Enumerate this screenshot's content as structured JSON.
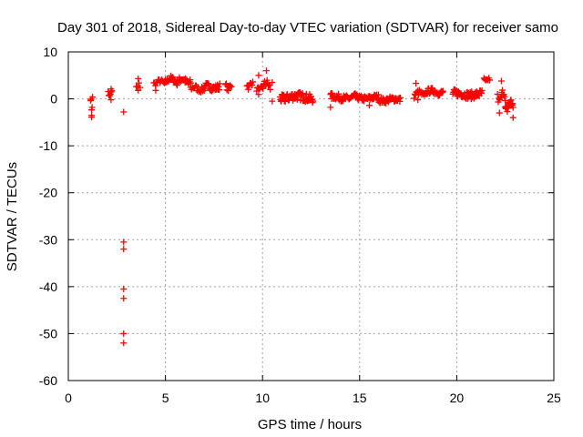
{
  "chart_data": {
    "type": "scatter",
    "title": "Day 301 of 2018, Sidereal Day-to-day VTEC variation (SDTVAR) for receiver samo",
    "xlabel": "GPS time / hours",
    "ylabel": "SDTVAR / TECUs",
    "xlim": [
      0,
      25
    ],
    "ylim": [
      -60,
      10
    ],
    "xticks": [
      "0",
      "5",
      "10",
      "15",
      "20",
      "25"
    ],
    "yticks": [
      "10",
      "0",
      "-10",
      "-20",
      "-30",
      "-40",
      "-50",
      "-60"
    ],
    "grid": true,
    "marker": "plus",
    "color": "#ff0000",
    "clusters": [
      {
        "x0": 1.15,
        "x1": 1.25,
        "y": -1.0,
        "amp": 2.5,
        "n": 5,
        "spread": 0.5
      },
      {
        "x0": 2.05,
        "x1": 2.25,
        "y": 1.0,
        "amp": 1.2,
        "n": 6,
        "spread": 0.5
      },
      {
        "x0": 3.5,
        "x1": 3.7,
        "y": 2.8,
        "amp": 1.6,
        "n": 4,
        "spread": 0.4
      },
      {
        "x0": 4.4,
        "x1": 5.0,
        "y": 3.5,
        "amp": 0.6,
        "n": 14,
        "spread": 0.5
      },
      {
        "x0": 5.0,
        "x1": 5.6,
        "y": 4.0,
        "amp": 0.8,
        "n": 20,
        "spread": 0.6
      },
      {
        "x0": 5.6,
        "x1": 6.3,
        "y": 3.8,
        "amp": 0.9,
        "n": 25,
        "spread": 0.7
      },
      {
        "x0": 6.3,
        "x1": 7.0,
        "y": 2.2,
        "amp": 0.6,
        "n": 18,
        "spread": 0.6
      },
      {
        "x0": 7.0,
        "x1": 7.8,
        "y": 2.5,
        "amp": 0.5,
        "n": 28,
        "spread": 0.7
      },
      {
        "x0": 8.1,
        "x1": 8.4,
        "y": 2.5,
        "amp": 0.8,
        "n": 10,
        "spread": 0.6
      },
      {
        "x0": 9.2,
        "x1": 9.5,
        "y": 3.0,
        "amp": 1.0,
        "n": 10,
        "spread": 0.6
      },
      {
        "x0": 9.7,
        "x1": 10.4,
        "y": 2.5,
        "amp": 1.8,
        "n": 22,
        "spread": 0.8
      },
      {
        "x0": 10.9,
        "x1": 12.6,
        "y": 0.3,
        "amp": 0.6,
        "n": 70,
        "spread": 0.9
      },
      {
        "x0": 13.5,
        "x1": 14.8,
        "y": 0.3,
        "amp": 0.5,
        "n": 45,
        "spread": 0.7
      },
      {
        "x0": 14.8,
        "x1": 16.0,
        "y": 0.2,
        "amp": 0.4,
        "n": 40,
        "spread": 0.6
      },
      {
        "x0": 16.0,
        "x1": 17.1,
        "y": -0.2,
        "amp": 0.4,
        "n": 38,
        "spread": 0.6
      },
      {
        "x0": 17.8,
        "x1": 18.4,
        "y": 1.0,
        "amp": 0.8,
        "n": 16,
        "spread": 0.6
      },
      {
        "x0": 18.4,
        "x1": 19.3,
        "y": 1.5,
        "amp": 0.5,
        "n": 30,
        "spread": 0.6
      },
      {
        "x0": 19.8,
        "x1": 21.3,
        "y": 1.0,
        "amp": 0.5,
        "n": 55,
        "spread": 0.8
      },
      {
        "x0": 21.4,
        "x1": 21.7,
        "y": 4.0,
        "amp": 0.5,
        "n": 8,
        "spread": 0.4
      },
      {
        "x0": 22.1,
        "x1": 22.5,
        "y": 0.5,
        "amp": 2.0,
        "n": 12,
        "spread": 0.8
      },
      {
        "x0": 22.5,
        "x1": 22.9,
        "y": -1.5,
        "amp": 1.8,
        "n": 24,
        "spread": 0.8
      }
    ],
    "extra_points": [
      {
        "x": 1.2,
        "y": -3.5
      },
      {
        "x": 1.2,
        "y": -3.9
      },
      {
        "x": 2.2,
        "y": -0.2
      },
      {
        "x": 2.2,
        "y": 2.1
      },
      {
        "x": 2.85,
        "y": -2.8
      },
      {
        "x": 2.85,
        "y": -30.5
      },
      {
        "x": 2.85,
        "y": -32.0
      },
      {
        "x": 2.85,
        "y": -40.5
      },
      {
        "x": 2.85,
        "y": -42.5
      },
      {
        "x": 2.85,
        "y": -50.0
      },
      {
        "x": 2.85,
        "y": -52.0
      },
      {
        "x": 3.6,
        "y": 4.3
      },
      {
        "x": 3.6,
        "y": 1.8
      },
      {
        "x": 4.5,
        "y": 1.8
      },
      {
        "x": 9.8,
        "y": 5.0
      },
      {
        "x": 10.2,
        "y": 6.0
      },
      {
        "x": 10.5,
        "y": 3.5
      },
      {
        "x": 10.5,
        "y": -0.5
      },
      {
        "x": 13.5,
        "y": -1.8
      },
      {
        "x": 15.5,
        "y": -1.4
      },
      {
        "x": 17.9,
        "y": 3.3
      },
      {
        "x": 18.0,
        "y": -0.2
      },
      {
        "x": 22.2,
        "y": -3.0
      },
      {
        "x": 22.3,
        "y": 3.8
      },
      {
        "x": 22.9,
        "y": -4.0
      }
    ]
  }
}
